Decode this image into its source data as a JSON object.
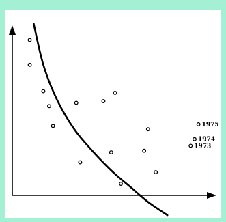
{
  "chart_data": {
    "type": "scatter",
    "title": "",
    "xlabel": "",
    "ylabel": "",
    "xlim": [
      0,
      100
    ],
    "ylim": [
      0,
      100
    ],
    "grid": false,
    "points": [
      {
        "x": 9,
        "y": 94
      },
      {
        "x": 9,
        "y": 79
      },
      {
        "x": 16,
        "y": 63
      },
      {
        "x": 19,
        "y": 54
      },
      {
        "x": 21,
        "y": 42
      },
      {
        "x": 33,
        "y": 56
      },
      {
        "x": 35,
        "y": 20
      },
      {
        "x": 47,
        "y": 57
      },
      {
        "x": 53,
        "y": 62
      },
      {
        "x": 51,
        "y": 26
      },
      {
        "x": 56,
        "y": 7
      },
      {
        "x": 68,
        "y": 27
      },
      {
        "x": 70,
        "y": 40
      },
      {
        "x": 74,
        "y": 14
      },
      {
        "x": 92,
        "y": 30,
        "label": "1973"
      },
      {
        "x": 94,
        "y": 34,
        "label": "1974"
      },
      {
        "x": 96,
        "y": 43,
        "label": "1975"
      }
    ],
    "curve": [
      {
        "x": 11,
        "y": 104
      },
      {
        "x": 16,
        "y": 79
      },
      {
        "x": 23,
        "y": 58
      },
      {
        "x": 32,
        "y": 40
      },
      {
        "x": 42,
        "y": 26
      },
      {
        "x": 52,
        "y": 14
      },
      {
        "x": 61,
        "y": 5
      },
      {
        "x": 70,
        "y": -4
      },
      {
        "x": 80,
        "y": -12
      }
    ]
  }
}
